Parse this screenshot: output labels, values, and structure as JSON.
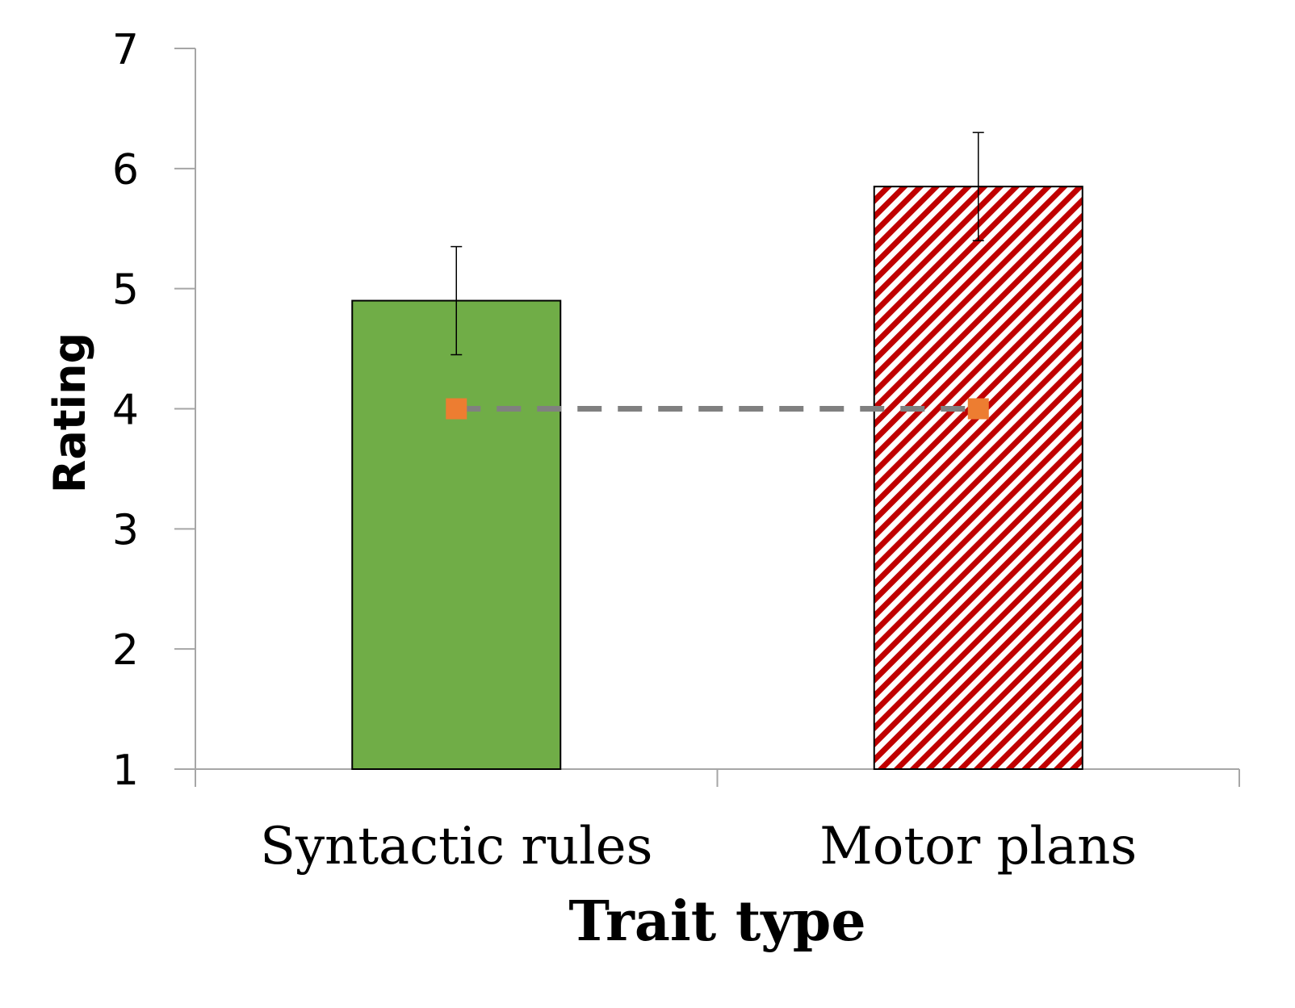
{
  "chart_data": {
    "type": "bar",
    "title": "",
    "xlabel": "Trait type",
    "ylabel": "Rating",
    "ylim": [
      1,
      7
    ],
    "yticks": [
      1,
      2,
      3,
      4,
      5,
      6,
      7
    ],
    "categories": [
      "Syntactic rules",
      "Motor plans"
    ],
    "series": [
      {
        "values": [
          4.9,
          5.85
        ],
        "error_low": [
          4.45,
          5.4
        ],
        "error_high": [
          5.35,
          6.3
        ],
        "fills": [
          "solid",
          "diagonal-hatch"
        ]
      }
    ],
    "reference_line": {
      "style": "dashed",
      "marker": "square",
      "values": [
        4,
        4
      ]
    },
    "grid": false,
    "legend": "none",
    "colors": {
      "bar_green": "#70ad47",
      "bar_hatch": "#c00000",
      "marker": "#ed7d31",
      "reference_line": "#808080",
      "axis": "#a6a6a6"
    }
  }
}
